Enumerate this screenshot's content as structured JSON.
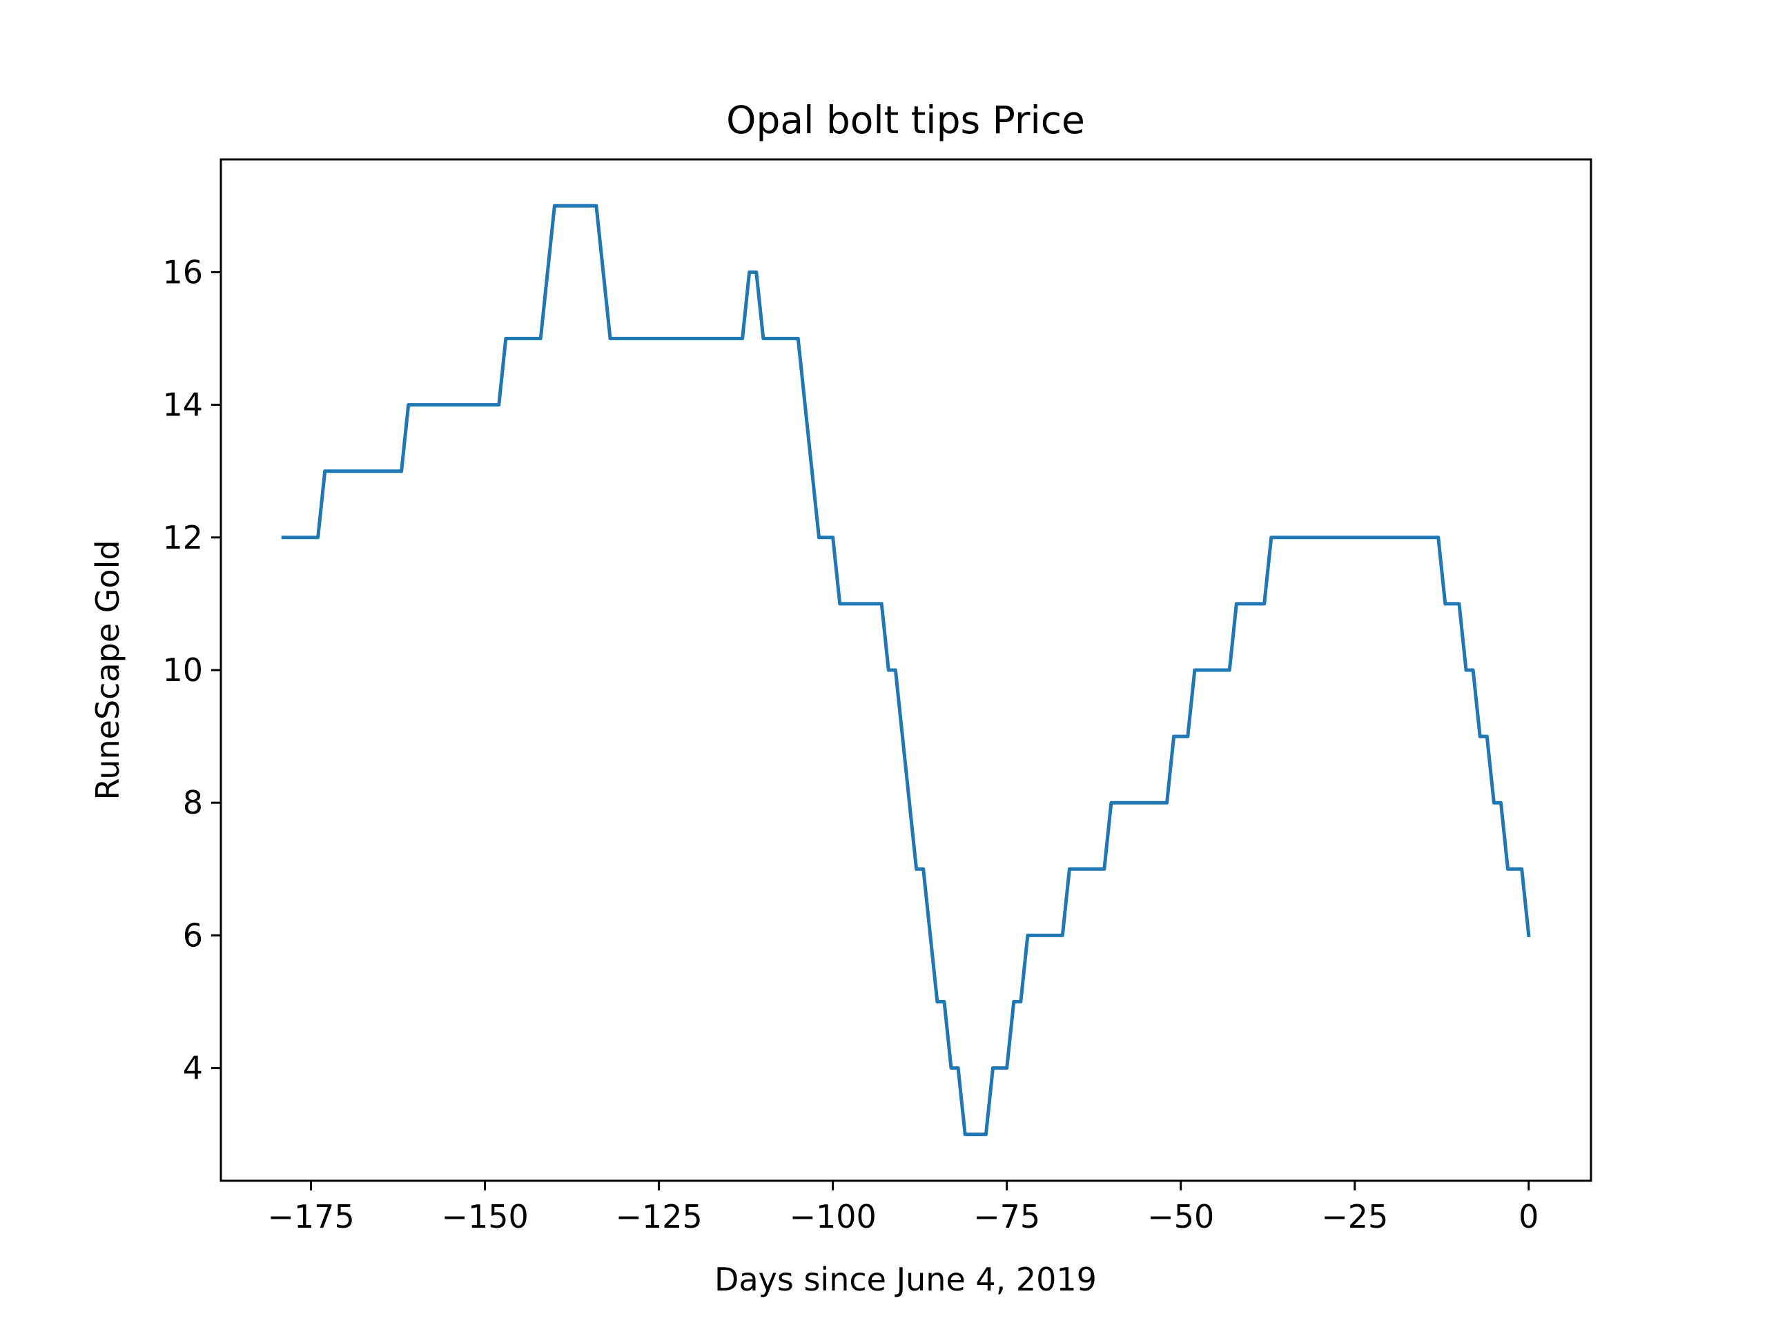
{
  "chart_data": {
    "type": "line",
    "title": "Opal bolt tips Price",
    "xlabel": "Days since June 4, 2019",
    "ylabel": "RuneScape Gold",
    "xlim": [
      -187.95,
      8.95
    ],
    "ylim": [
      2.3,
      17.7
    ],
    "xticks": [
      -175,
      -150,
      -125,
      -100,
      -75,
      -50,
      -25,
      0
    ],
    "xtick_labels": [
      "−175",
      "−150",
      "−125",
      "−100",
      "−75",
      "−50",
      "−25",
      "0"
    ],
    "yticks": [
      4,
      6,
      8,
      10,
      12,
      14,
      16
    ],
    "ytick_labels": [
      "4",
      "6",
      "8",
      "10",
      "12",
      "14",
      "16"
    ],
    "grid": false,
    "legend": "none",
    "series": [
      {
        "color": "#1f77b4",
        "x": [
          -179,
          -174,
          -173,
          -162,
          -161,
          -148,
          -147,
          -142,
          -140,
          -134,
          -132,
          -113,
          -112,
          -111,
          -110,
          -105,
          -102,
          -100,
          -99,
          -93,
          -92,
          -91,
          -88,
          -87,
          -85,
          -84,
          -83,
          -82,
          -81,
          -78,
          -77,
          -75,
          -74,
          -73,
          -72,
          -67,
          -66,
          -61,
          -60,
          -52,
          -51,
          -49,
          -48,
          -43,
          -42,
          -38,
          -37,
          -13,
          -12,
          -10,
          -9,
          -8,
          -7,
          -6,
          -5,
          -4,
          -3,
          -1,
          0
        ],
        "y": [
          12,
          12,
          13,
          13,
          14,
          14,
          15,
          15,
          17,
          17,
          15,
          15,
          16,
          16,
          15,
          15,
          12,
          12,
          11,
          11,
          10,
          10,
          7,
          7,
          5,
          5,
          4,
          4,
          3,
          3,
          4,
          4,
          5,
          5,
          6,
          6,
          7,
          7,
          8,
          8,
          9,
          9,
          10,
          10,
          11,
          11,
          12,
          12,
          11,
          11,
          10,
          10,
          9,
          9,
          8,
          8,
          7,
          7,
          6
        ]
      }
    ]
  }
}
